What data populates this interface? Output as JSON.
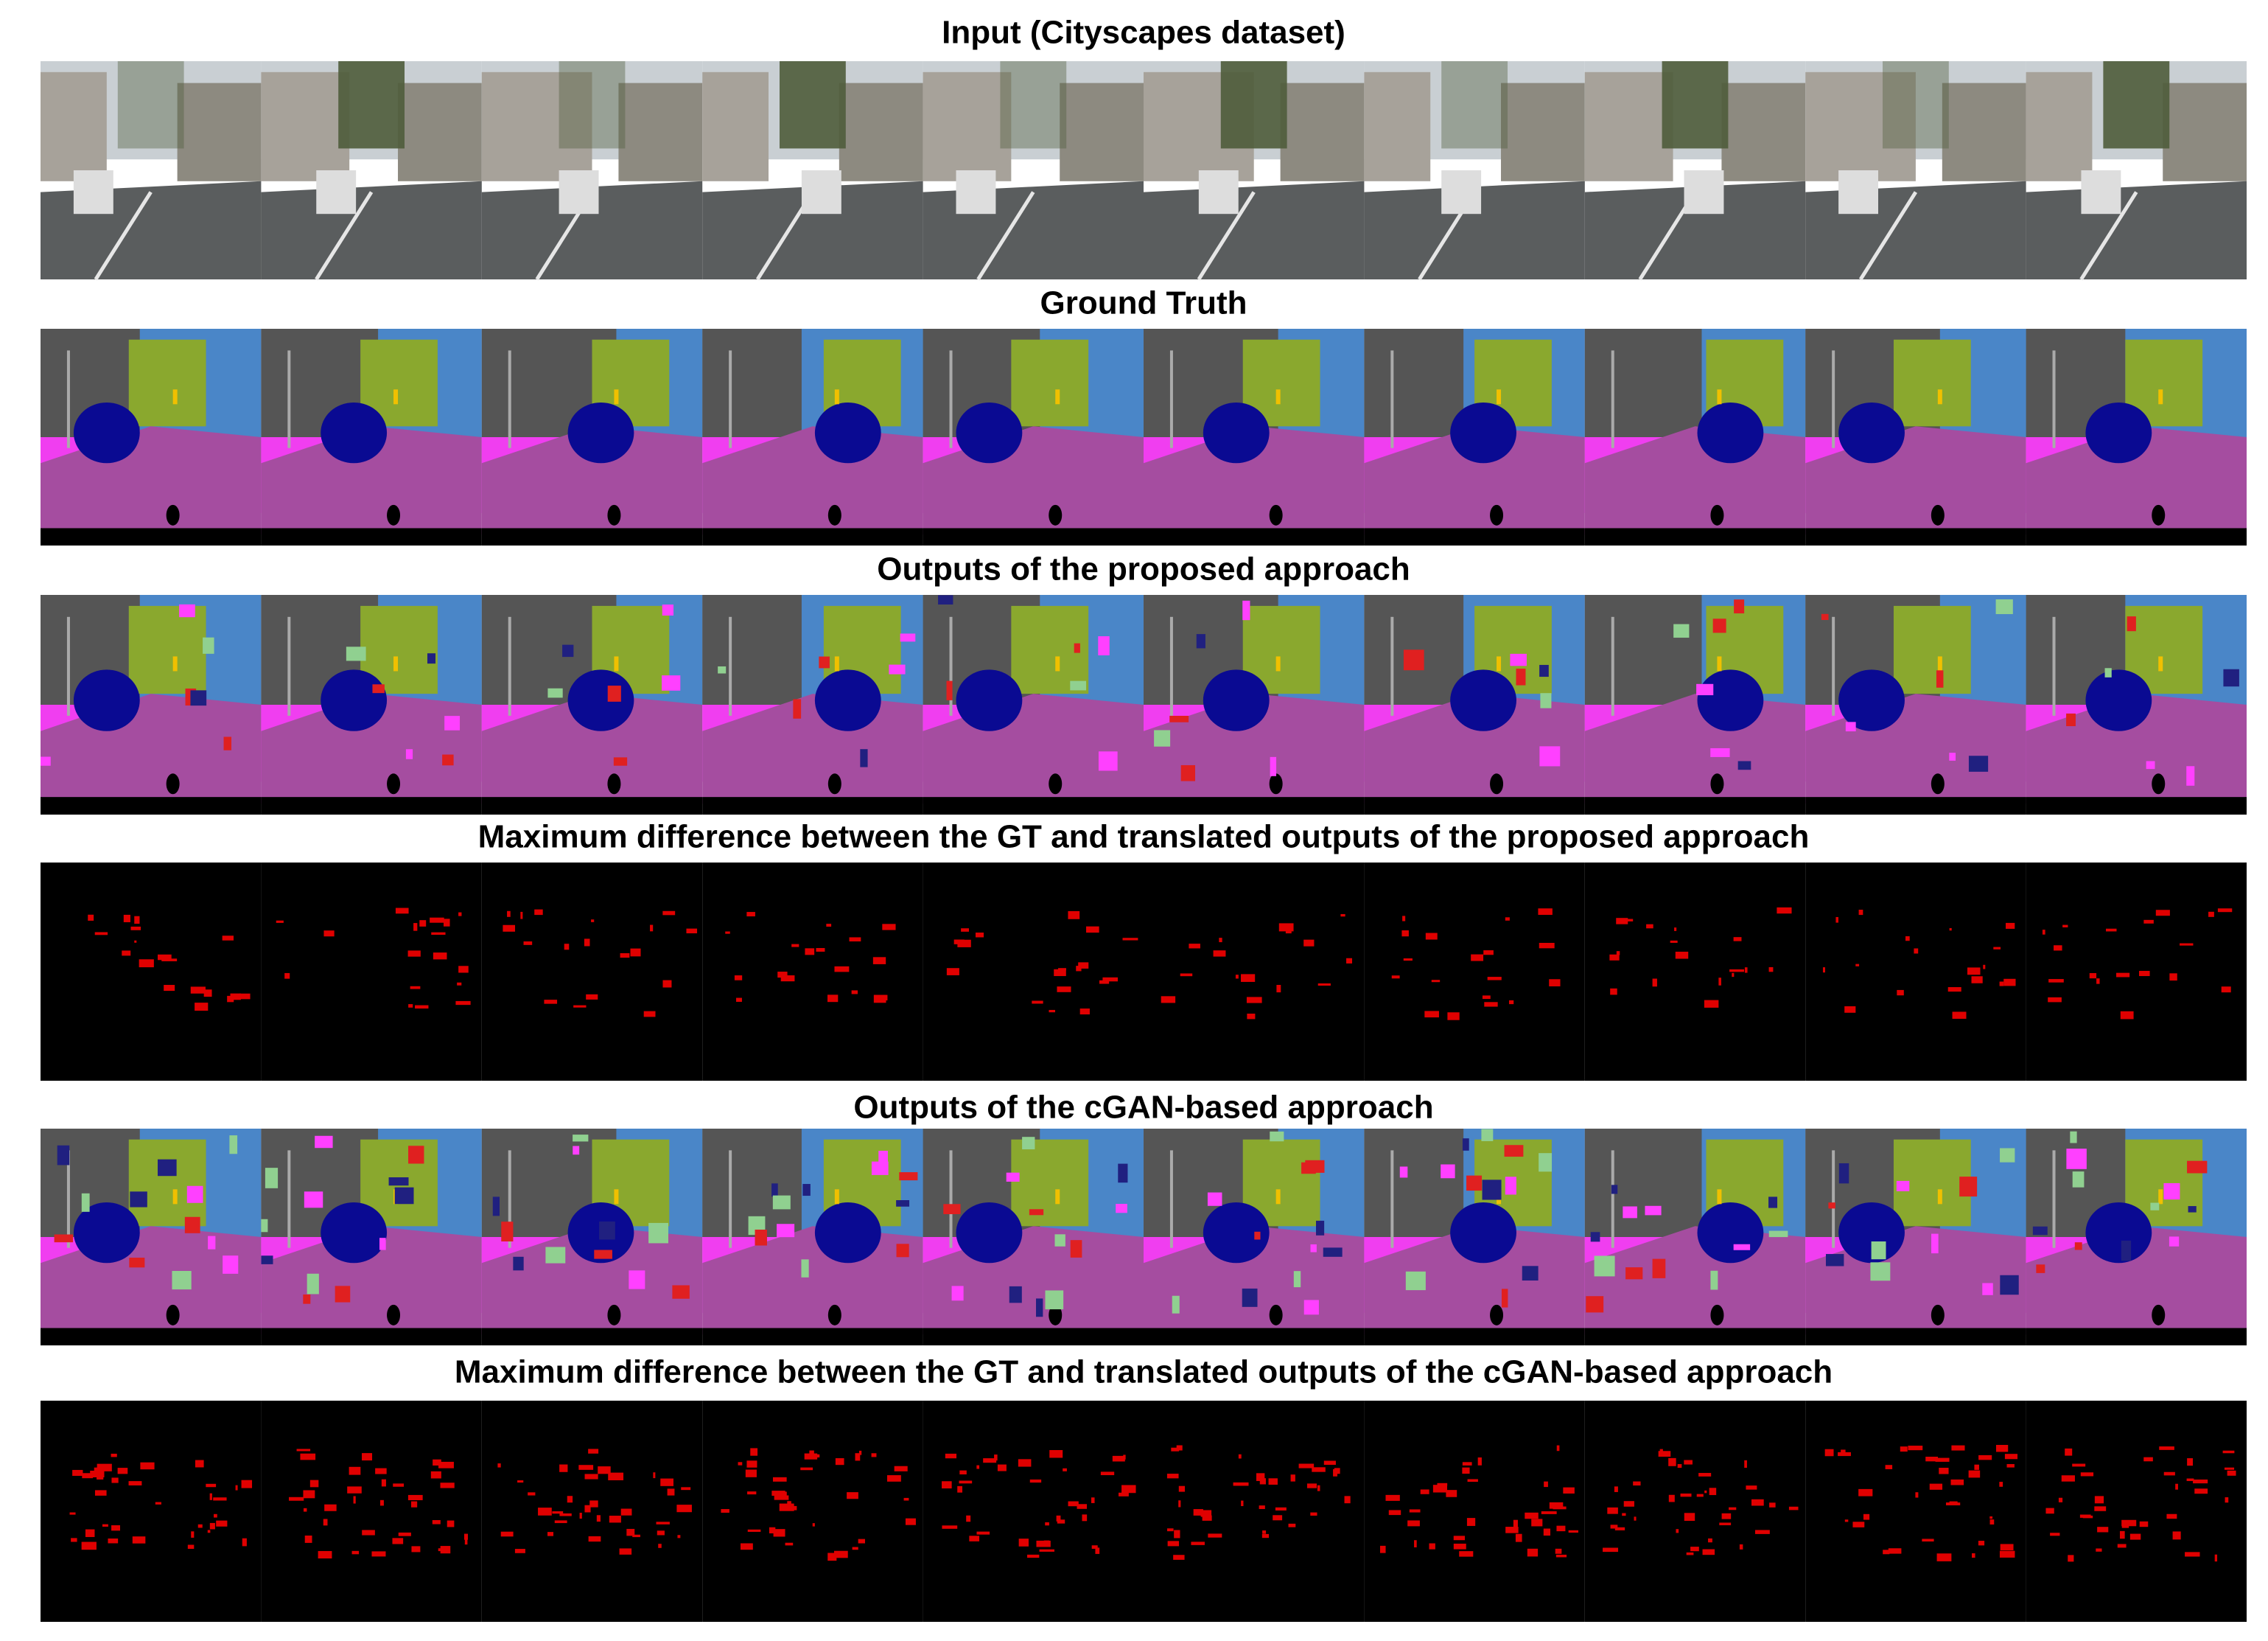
{
  "figure": {
    "rows": [
      {
        "title": "Input (Cityscapes dataset)"
      },
      {
        "title": "Ground Truth"
      },
      {
        "title": "Outputs of the proposed approach"
      },
      {
        "title": "Maximum difference between the GT and translated outputs of the proposed approach"
      },
      {
        "title": "Outputs of the cGAN-based approach"
      },
      {
        "title": "Maximum difference between the GT and translated outputs of the cGAN-based approach"
      }
    ]
  }
}
